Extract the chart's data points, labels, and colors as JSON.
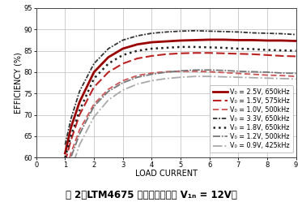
{
  "xlabel": "LOAD CURRENT",
  "ylabel": "EFFICIENCY (%)",
  "xlim": [
    0,
    9
  ],
  "ylim": [
    60,
    95
  ],
  "xticks": [
    0,
    1,
    2,
    3,
    4,
    5,
    6,
    7,
    8,
    9
  ],
  "yticks": [
    60,
    65,
    70,
    75,
    80,
    85,
    90,
    95
  ],
  "caption": "图 2：LTM4675 单通道效率（在 V₁ₙ = 12V）",
  "curves": [
    {
      "label": "V₀ = 2.5V, 650kHz",
      "color": "#990000",
      "linewidth": 2.0,
      "linestyle": "solid",
      "x": [
        1.0,
        1.2,
        1.5,
        2.0,
        2.5,
        3.0,
        3.5,
        4.0,
        4.5,
        5.0,
        5.5,
        6.0,
        6.5,
        7.0,
        7.5,
        8.0,
        8.5,
        9.0
      ],
      "y": [
        61,
        67,
        73,
        80,
        83.5,
        85.5,
        86.5,
        87.0,
        87.2,
        87.4,
        87.5,
        87.6,
        87.6,
        87.5,
        87.5,
        87.4,
        87.4,
        87.3
      ]
    },
    {
      "label": "V₀ = 1.5V, 575kHz",
      "color": "#bb2222",
      "linewidth": 1.5,
      "linestyle": "dashed",
      "dashes": [
        5,
        2
      ],
      "x": [
        1.0,
        1.2,
        1.5,
        2.0,
        2.5,
        3.0,
        3.5,
        4.0,
        4.5,
        5.0,
        5.5,
        6.0,
        6.5,
        7.0,
        7.5,
        8.0,
        8.5,
        9.0
      ],
      "y": [
        59,
        64,
        70,
        76.5,
        80,
        82.0,
        83.2,
        83.8,
        84.2,
        84.4,
        84.5,
        84.5,
        84.4,
        84.3,
        84.2,
        84.0,
        83.8,
        83.7
      ]
    },
    {
      "label": "V₀ = 1.0V, 500kHz",
      "color": "#cc5555",
      "linewidth": 1.3,
      "linestyle": "dashed",
      "dashes": [
        4,
        2
      ],
      "x": [
        1.0,
        1.2,
        1.5,
        2.0,
        2.5,
        3.0,
        3.5,
        4.0,
        4.5,
        5.0,
        5.5,
        6.0,
        6.5,
        7.0,
        7.5,
        8.0,
        8.5,
        9.0
      ],
      "y": [
        56,
        61,
        66.5,
        72.5,
        76,
        78.0,
        79.2,
        79.8,
        80.1,
        80.2,
        80.2,
        80.1,
        79.9,
        79.7,
        79.5,
        79.3,
        79.2,
        79.0
      ]
    },
    {
      "label": "V₀ = 3.3V, 650kHz",
      "color": "#333333",
      "linewidth": 1.3,
      "linestyle": "dashed",
      "dashes": [
        3,
        1,
        1,
        1
      ],
      "x": [
        1.0,
        1.2,
        1.5,
        2.0,
        2.5,
        3.0,
        3.5,
        4.0,
        4.5,
        5.0,
        5.5,
        6.0,
        6.5,
        7.0,
        7.5,
        8.0,
        8.5,
        9.0
      ],
      "y": [
        63,
        69,
        75.5,
        82,
        85.5,
        87.5,
        88.5,
        89.1,
        89.4,
        89.6,
        89.7,
        89.6,
        89.5,
        89.4,
        89.2,
        89.1,
        89.0,
        88.8
      ]
    },
    {
      "label": "V₀ = 1.8V, 650kHz",
      "color": "#222222",
      "linewidth": 1.8,
      "linestyle": "dotted",
      "x": [
        1.0,
        1.2,
        1.5,
        2.0,
        2.5,
        3.0,
        3.5,
        4.0,
        4.5,
        5.0,
        5.5,
        6.0,
        6.5,
        7.0,
        7.5,
        8.0,
        8.5,
        9.0
      ],
      "y": [
        60,
        65,
        71,
        78.5,
        82,
        84.0,
        85.0,
        85.5,
        85.7,
        85.9,
        85.9,
        85.8,
        85.7,
        85.5,
        85.4,
        85.2,
        85.1,
        85.0
      ]
    },
    {
      "label": "V₀ = 1.2V, 500kHz",
      "color": "#777777",
      "linewidth": 1.3,
      "linestyle": "dashed",
      "dashes": [
        5,
        1,
        1,
        1
      ],
      "x": [
        1.0,
        1.2,
        1.5,
        2.0,
        2.5,
        3.0,
        3.5,
        4.0,
        4.5,
        5.0,
        5.5,
        6.0,
        6.5,
        7.0,
        7.5,
        8.0,
        8.5,
        9.0
      ],
      "y": [
        55,
        60,
        65.5,
        72,
        75.5,
        77.5,
        78.8,
        79.5,
        80.0,
        80.3,
        80.5,
        80.5,
        80.4,
        80.2,
        80.1,
        80.0,
        79.8,
        79.7
      ]
    },
    {
      "label": "V₀ = 0.9V, 425kHz",
      "color": "#aaaaaa",
      "linewidth": 1.3,
      "linestyle": "dashdot",
      "x": [
        1.0,
        1.2,
        1.5,
        2.0,
        2.5,
        3.0,
        3.5,
        4.0,
        4.5,
        5.0,
        5.5,
        6.0,
        6.5,
        7.0,
        7.5,
        8.0,
        8.5,
        9.0
      ],
      "y": [
        52,
        57,
        63,
        69.5,
        73.5,
        75.8,
        77.2,
        78.0,
        78.5,
        78.8,
        79.0,
        79.0,
        78.9,
        78.8,
        78.7,
        78.6,
        78.5,
        78.4
      ]
    }
  ],
  "legend_fontsize": 5.8,
  "axis_fontsize": 7,
  "tick_fontsize": 6,
  "caption_fontsize": 8.5
}
